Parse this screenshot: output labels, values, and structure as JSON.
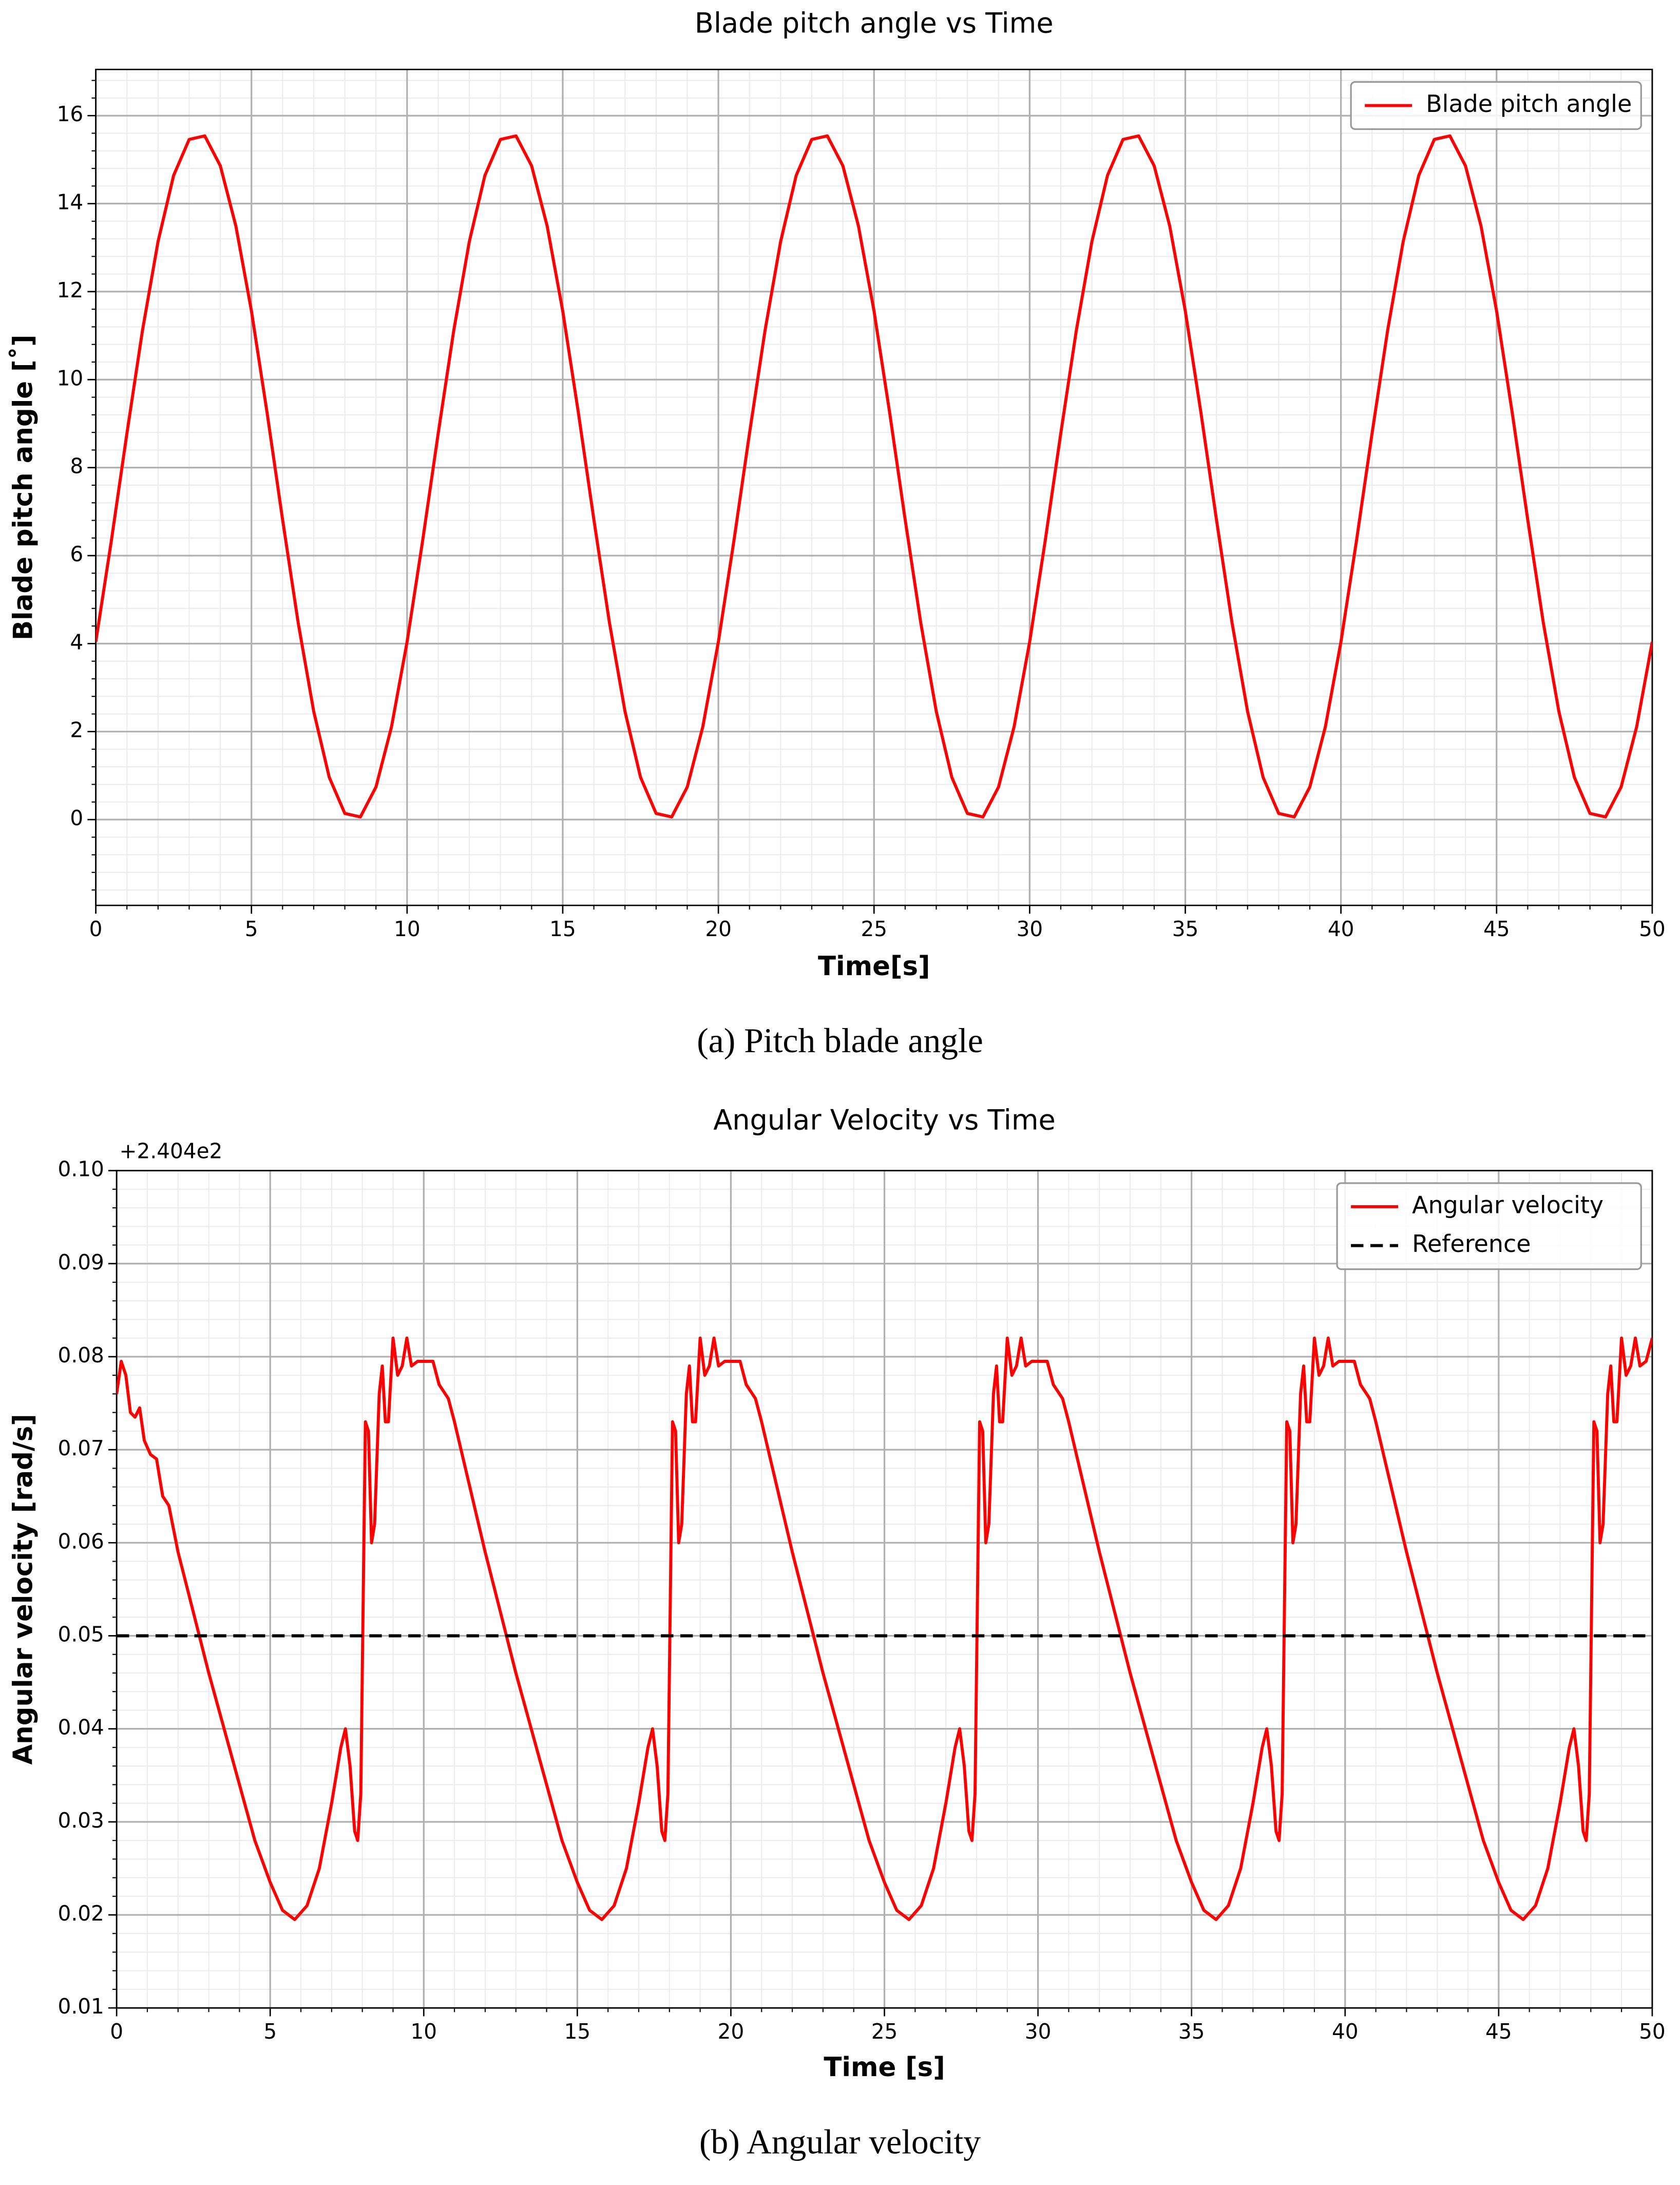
{
  "chart_data": [
    {
      "type": "line",
      "title": "Blade pitch angle vs Time",
      "x_label": "Time[s]",
      "y_label": "Blade pitch angle [˚]",
      "caption": "(a) Pitch blade angle",
      "xlim": [
        0,
        50
      ],
      "xticks": [
        0,
        5,
        10,
        15,
        20,
        25,
        30,
        35,
        40,
        45,
        50
      ],
      "ylim": [
        -1.95,
        17.05
      ],
      "yticks": [
        0,
        2,
        4,
        6,
        8,
        10,
        12,
        14,
        16
      ],
      "grid": true,
      "minor_grid": true,
      "legend": "upper right",
      "x": [
        0,
        0.5,
        1,
        1.5,
        2,
        2.5,
        3,
        3.5,
        4,
        4.5,
        5,
        5.5,
        6,
        6.5,
        7,
        7.5,
        8,
        8.5,
        9,
        9.5,
        10,
        10.5,
        11,
        11.5,
        12,
        12.5,
        13,
        13.5,
        14,
        14.5,
        15,
        15.5,
        16,
        16.5,
        17,
        17.5,
        18,
        18.5,
        19,
        19.5,
        20,
        20.5,
        21,
        21.5,
        22,
        22.5,
        23,
        23.5,
        24,
        24.5,
        25,
        25.5,
        26,
        26.5,
        27,
        27.5,
        28,
        28.5,
        29,
        29.5,
        30,
        30.5,
        31,
        31.5,
        32,
        32.5,
        33,
        33.5,
        34,
        34.5,
        35,
        35.5,
        36,
        36.5,
        37,
        37.5,
        38,
        38.5,
        39,
        39.5,
        40,
        40.5,
        41,
        41.5,
        42,
        42.5,
        43,
        43.5,
        44,
        44.5,
        45,
        45.5,
        46,
        46.5,
        47,
        47.5,
        48,
        48.5,
        49,
        49.5,
        50
      ],
      "series": [
        {
          "name": "Blade pitch angle",
          "color": "#ff0000",
          "line_style": "solid",
          "values": [
            4.04,
            6.34,
            8.78,
            11.12,
            13.14,
            14.64,
            15.46,
            15.54,
            14.86,
            13.49,
            11.56,
            9.26,
            6.82,
            4.48,
            2.46,
            0.96,
            0.14,
            0.06,
            0.74,
            2.11,
            4.04,
            6.34,
            8.78,
            11.12,
            13.14,
            14.64,
            15.46,
            15.54,
            14.86,
            13.49,
            11.56,
            9.26,
            6.82,
            4.48,
            2.46,
            0.96,
            0.14,
            0.06,
            0.74,
            2.11,
            4.04,
            6.34,
            8.78,
            11.12,
            13.14,
            14.64,
            15.46,
            15.54,
            14.86,
            13.49,
            11.56,
            9.26,
            6.82,
            4.48,
            2.46,
            0.96,
            0.14,
            0.06,
            0.74,
            2.11,
            4.04,
            6.34,
            8.78,
            11.12,
            13.14,
            14.64,
            15.46,
            15.54,
            14.86,
            13.49,
            11.56,
            9.26,
            6.82,
            4.48,
            2.46,
            0.96,
            0.14,
            0.06,
            0.74,
            2.11,
            4.04,
            6.34,
            8.78,
            11.12,
            13.14,
            14.64,
            15.46,
            15.54,
            14.86,
            13.49,
            11.56,
            9.26,
            6.82,
            4.48,
            2.46,
            0.96,
            0.14,
            0.06,
            0.74,
            2.11,
            4.04
          ]
        }
      ]
    },
    {
      "type": "line",
      "title": "Angular Velocity vs Time",
      "x_label": "Time [s]",
      "y_label": "Angular velocity [rad/s]",
      "y_offset_label": "+2.404e2",
      "caption": "(b) Angular velocity",
      "xlim": [
        0,
        50
      ],
      "xticks": [
        0,
        5,
        10,
        15,
        20,
        25,
        30,
        35,
        40,
        45,
        50
      ],
      "ylim": [
        0.01,
        0.1
      ],
      "yticks": [
        0.01,
        0.02,
        0.03,
        0.04,
        0.05,
        0.06,
        0.07,
        0.08,
        0.09,
        {
          "value": 0.1,
          "label": "0.10"
        }
      ],
      "grid": true,
      "minor_grid": true,
      "legend": "upper right",
      "series": [
        {
          "name": "Angular velocity",
          "color": "#ff0000",
          "line_style": "solid",
          "x": [
            0,
            0.15,
            0.3,
            0.45,
            0.6,
            0.75,
            0.9,
            1.1,
            1.3,
            1.5,
            1.7,
            2,
            2.5,
            3,
            3.5,
            4,
            4.5,
            5,
            5.4,
            5.8,
            6.2,
            6.6,
            7,
            7.3,
            7.45,
            7.6,
            7.75,
            7.85,
            7.95,
            8.1,
            8.2,
            8.3,
            8.4,
            8.55,
            8.65,
            8.75,
            8.85,
            9,
            9.15,
            9.3,
            9.45,
            9.6,
            9.8,
            10,
            10.3,
            10.5,
            10.8,
            11,
            11.5,
            12,
            12.5,
            13,
            13.5,
            14,
            14.5,
            15,
            15.4,
            15.8,
            16.2,
            16.6,
            17,
            17.3,
            17.45,
            17.6,
            17.75,
            17.85,
            17.95,
            18.1,
            18.2,
            18.3,
            18.4,
            18.55,
            18.65,
            18.75,
            18.85,
            19,
            19.15,
            19.3,
            19.45,
            19.6,
            19.8,
            20,
            20.3,
            20.5,
            20.8,
            21,
            21.5,
            22,
            22.5,
            23,
            23.5,
            24,
            24.5,
            25,
            25.4,
            25.8,
            26.2,
            26.6,
            27,
            27.3,
            27.45,
            27.6,
            27.75,
            27.85,
            27.95,
            28.1,
            28.2,
            28.3,
            28.4,
            28.55,
            28.65,
            28.75,
            28.85,
            29,
            29.15,
            29.3,
            29.45,
            29.6,
            29.8,
            30,
            30.3,
            30.5,
            30.8,
            31,
            31.5,
            32,
            32.5,
            33,
            33.5,
            34,
            34.5,
            35,
            35.4,
            35.8,
            36.2,
            36.6,
            37,
            37.3,
            37.45,
            37.6,
            37.75,
            37.85,
            37.95,
            38.1,
            38.2,
            38.3,
            38.4,
            38.55,
            38.65,
            38.75,
            38.85,
            39,
            39.15,
            39.3,
            39.45,
            39.6,
            39.8,
            40,
            40.3,
            40.5,
            40.8,
            41,
            41.5,
            42,
            42.5,
            43,
            43.5,
            44,
            44.5,
            45,
            45.4,
            45.8,
            46.2,
            46.6,
            47,
            47.3,
            47.45,
            47.6,
            47.75,
            47.85,
            47.95,
            48.1,
            48.2,
            48.3,
            48.4,
            48.55,
            48.65,
            48.75,
            48.85,
            49,
            49.15,
            49.3,
            49.45,
            49.6,
            49.8,
            50
          ],
          "values": [
            0.076,
            0.0795,
            0.078,
            0.074,
            0.0735,
            0.0745,
            0.071,
            0.0695,
            0.069,
            0.065,
            0.064,
            0.059,
            0.0525,
            0.046,
            0.04,
            0.034,
            0.028,
            0.0235,
            0.0205,
            0.0195,
            0.021,
            0.025,
            0.032,
            0.038,
            0.04,
            0.036,
            0.029,
            0.028,
            0.033,
            0.073,
            0.072,
            0.06,
            0.062,
            0.076,
            0.079,
            0.073,
            0.073,
            0.082,
            0.078,
            0.079,
            0.082,
            0.079,
            0.0795,
            0.0795,
            0.0795,
            0.077,
            0.0755,
            0.073,
            0.066,
            0.059,
            0.0525,
            0.046,
            0.04,
            0.034,
            0.028,
            0.0235,
            0.0205,
            0.0195,
            0.021,
            0.025,
            0.032,
            0.038,
            0.04,
            0.036,
            0.029,
            0.028,
            0.033,
            0.073,
            0.072,
            0.06,
            0.062,
            0.076,
            0.079,
            0.073,
            0.073,
            0.082,
            0.078,
            0.079,
            0.082,
            0.079,
            0.0795,
            0.0795,
            0.0795,
            0.077,
            0.0755,
            0.073,
            0.066,
            0.059,
            0.0525,
            0.046,
            0.04,
            0.034,
            0.028,
            0.0235,
            0.0205,
            0.0195,
            0.021,
            0.025,
            0.032,
            0.038,
            0.04,
            0.036,
            0.029,
            0.028,
            0.033,
            0.073,
            0.072,
            0.06,
            0.062,
            0.076,
            0.079,
            0.073,
            0.073,
            0.082,
            0.078,
            0.079,
            0.082,
            0.079,
            0.0795,
            0.0795,
            0.0795,
            0.077,
            0.0755,
            0.073,
            0.066,
            0.059,
            0.0525,
            0.046,
            0.04,
            0.034,
            0.028,
            0.0235,
            0.0205,
            0.0195,
            0.021,
            0.025,
            0.032,
            0.038,
            0.04,
            0.036,
            0.029,
            0.028,
            0.033,
            0.073,
            0.072,
            0.06,
            0.062,
            0.076,
            0.079,
            0.073,
            0.073,
            0.082,
            0.078,
            0.079,
            0.082,
            0.079,
            0.0795,
            0.0795,
            0.0795,
            0.077,
            0.0755,
            0.073,
            0.066,
            0.059,
            0.0525,
            0.046,
            0.04,
            0.034,
            0.028,
            0.0235,
            0.0205,
            0.0195,
            0.021,
            0.025,
            0.032,
            0.038,
            0.04,
            0.036,
            0.029,
            0.028,
            0.033,
            0.073,
            0.072,
            0.06,
            0.062,
            0.076,
            0.079,
            0.073,
            0.073,
            0.082,
            0.078,
            0.079,
            0.082,
            0.079,
            0.0795,
            0.082
          ]
        },
        {
          "name": "Reference",
          "color": "#000000",
          "line_style": "dashed",
          "x": [
            0,
            50
          ],
          "values": [
            0.05,
            0.05
          ]
        }
      ]
    }
  ]
}
